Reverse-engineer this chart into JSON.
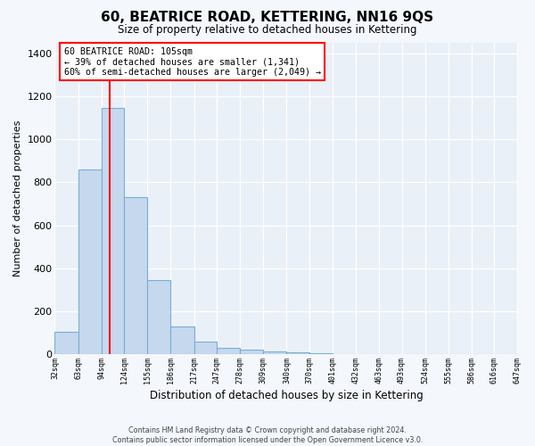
{
  "title": "60, BEATRICE ROAD, KETTERING, NN16 9QS",
  "subtitle": "Size of property relative to detached houses in Kettering",
  "xlabel": "Distribution of detached houses by size in Kettering",
  "ylabel": "Number of detached properties",
  "bar_color": "#c5d8ee",
  "bar_edge_color": "#7aafd4",
  "plot_bg_color": "#eaf0f8",
  "fig_bg_color": "#f4f7fc",
  "grid_color": "#ffffff",
  "bin_edges": [
    32,
    63,
    94,
    124,
    155,
    186,
    217,
    247,
    278,
    309,
    340,
    370,
    401,
    432,
    463,
    493,
    524,
    555,
    586,
    616,
    647
  ],
  "bin_labels": [
    "32sqm",
    "63sqm",
    "94sqm",
    "124sqm",
    "155sqm",
    "186sqm",
    "217sqm",
    "247sqm",
    "278sqm",
    "309sqm",
    "340sqm",
    "370sqm",
    "401sqm",
    "432sqm",
    "463sqm",
    "493sqm",
    "524sqm",
    "555sqm",
    "586sqm",
    "616sqm",
    "647sqm"
  ],
  "bar_heights": [
    105,
    860,
    1145,
    730,
    345,
    130,
    60,
    30,
    20,
    15,
    10,
    5,
    0,
    0,
    0,
    0,
    0,
    0,
    0,
    0
  ],
  "ylim_max": 1450,
  "yticks": [
    0,
    200,
    400,
    600,
    800,
    1000,
    1200,
    1400
  ],
  "red_line_x": 105,
  "annotation_title": "60 BEATRICE ROAD: 105sqm",
  "annotation_line1": "← 39% of detached houses are smaller (1,341)",
  "annotation_line2": "60% of semi-detached houses are larger (2,049) →",
  "footer_line1": "Contains HM Land Registry data © Crown copyright and database right 2024.",
  "footer_line2": "Contains public sector information licensed under the Open Government Licence v3.0."
}
